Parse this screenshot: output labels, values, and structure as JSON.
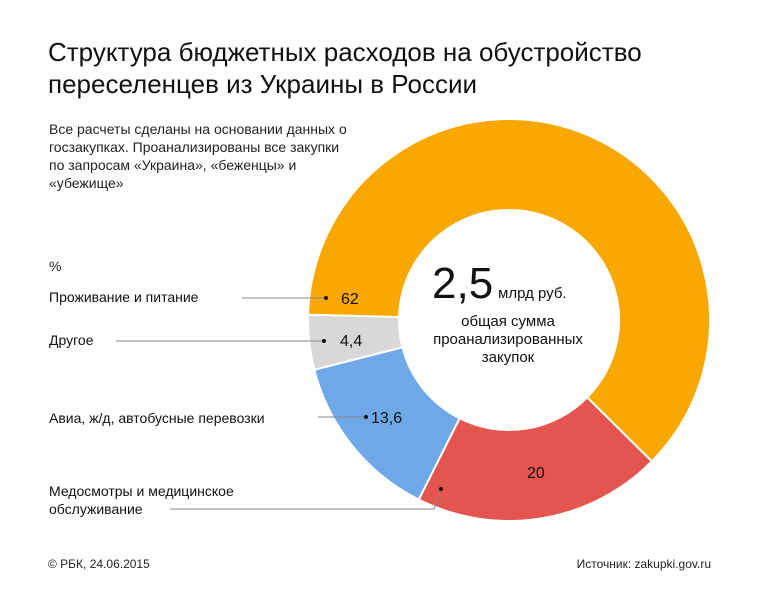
{
  "title": "Структура бюджетных расходов на обустройство переселенцев из Украины в России",
  "intro": "Все расчеты сделаны на основании данных о госзакупках. Проанализированы все закупки по запросам «Украина», «беженцы» и «убежище»",
  "unit_label": "%",
  "center": {
    "value": "2,5",
    "unit": "млрд руб.",
    "line1": "общая сумма",
    "line2": "проанализированных",
    "line3": "закупок"
  },
  "footer": {
    "copyright": "© РБК, 24.06.2015",
    "source": "Источник: zakupki.gov.ru"
  },
  "chart_data": {
    "type": "pie",
    "title": "Структура бюджетных расходов на обустройство переселенцев из Украины в России",
    "unit": "%",
    "categories": [
      "Проживание и питание",
      "Медосмотры и медицинское обслуживание",
      "Авиа, ж/д, автобусные перевозки",
      "Другое"
    ],
    "values": [
      62,
      20,
      13.6,
      4.4
    ],
    "value_labels": [
      "62",
      "20",
      "13,6",
      "4,4"
    ],
    "colors": [
      "#f8a800",
      "#e5554f",
      "#6fa8e6",
      "#d8d8d8"
    ],
    "total_label": "2,5 млрд руб."
  }
}
